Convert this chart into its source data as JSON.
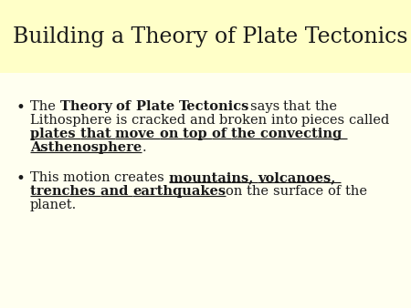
{
  "title": "Building a Theory of Plate Tectonics",
  "title_bg_color": "#FFFFC8",
  "slide_bg_color": "#FFFFF0",
  "title_fontsize": 17,
  "body_fontsize": 10.5,
  "body_color": "#1A1A1A",
  "bullet1_parts": [
    [
      "The ",
      false,
      false
    ],
    [
      "Theory of Plate Tectonics",
      true,
      false
    ],
    [
      " says that the Lithosphere is cracked and broken into pieces called ",
      false,
      false
    ],
    [
      "plates that move on top of the convecting Asthenosphere",
      true,
      true
    ],
    [
      ".",
      false,
      false
    ]
  ],
  "bullet2_parts": [
    [
      "This motion creates ",
      false,
      false
    ],
    [
      "mountains, volcanoes, trenches and earthquakes",
      true,
      true
    ],
    [
      " on the surface of the planet.",
      false,
      false
    ]
  ],
  "figwidth": 4.5,
  "figheight": 3.38,
  "dpi": 100
}
